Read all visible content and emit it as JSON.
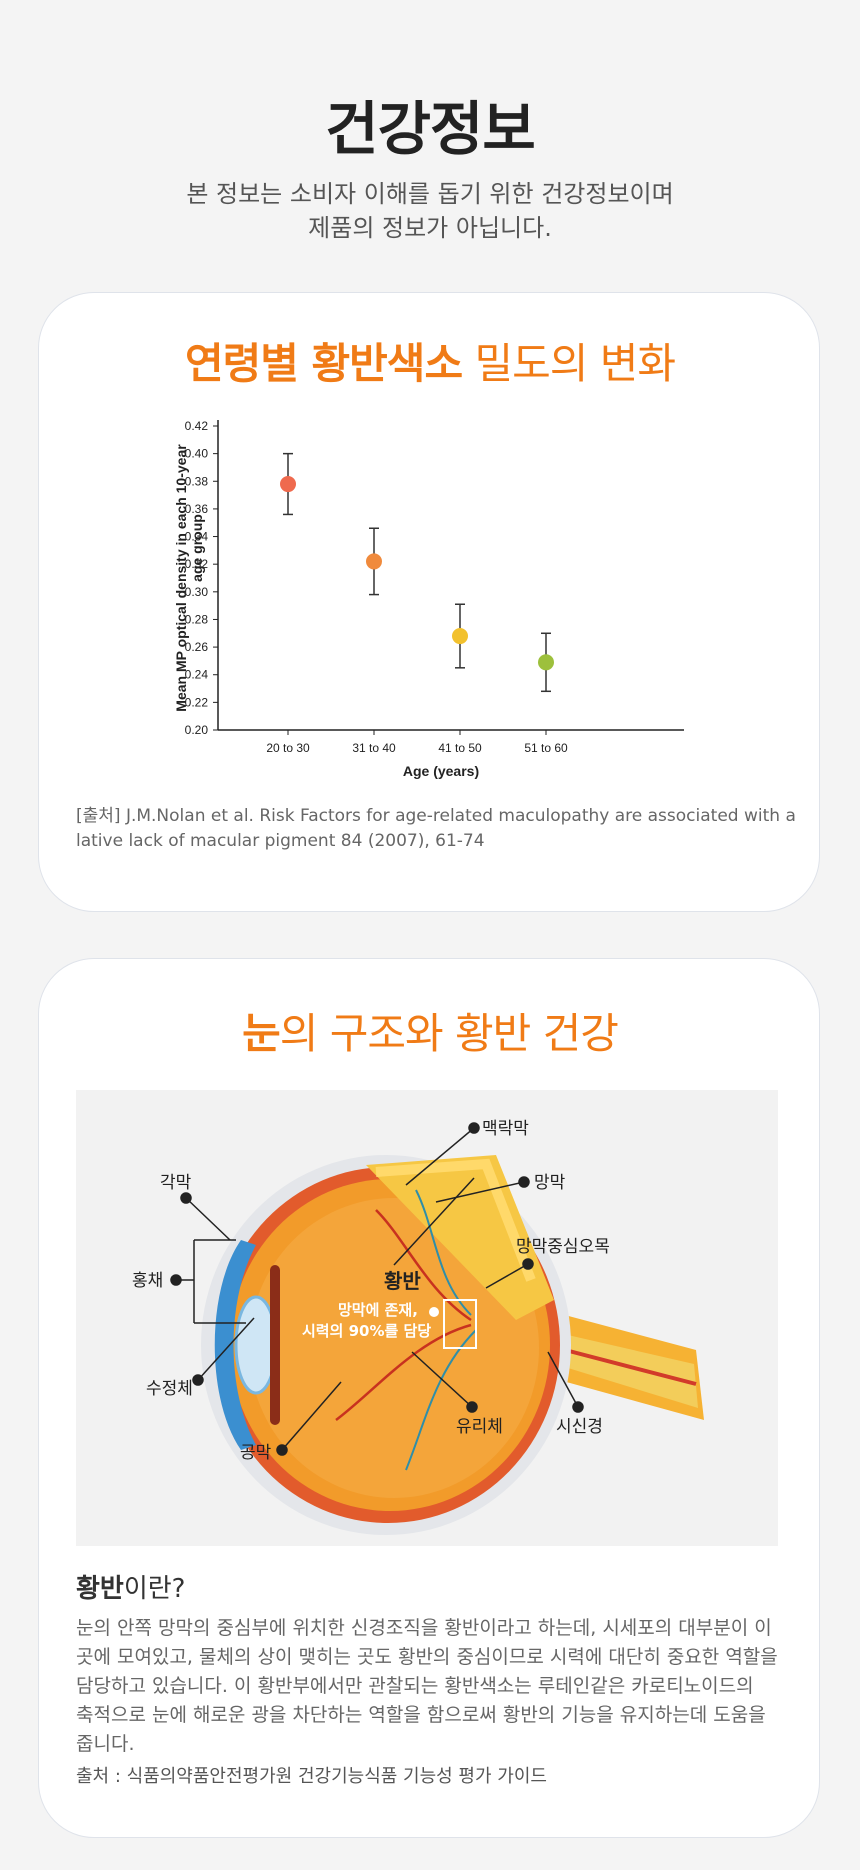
{
  "header": {
    "title": "건강정보",
    "subtitle_line1": "본 정보는 소비자 이해를 돕기 위한 건강정보이며",
    "subtitle_line2": "제품의 정보가 아닙니다."
  },
  "card1": {
    "title_highlight": "연령별 황반색소",
    "title_rest": " 밀도의 변화",
    "source": "[출처] J.M.Nolan et al. Risk Factors for age-related maculopathy are associated with a lative lack of macular pigment 84 (2007), 61-74"
  },
  "chart_data": {
    "type": "scatter",
    "xlabel": "Age (years)",
    "ylabel_line1": "Mean MP optical density in each 10-year",
    "ylabel_line2": "age group",
    "categories": [
      "20 to 30",
      "31 to 40",
      "41 to 50",
      "51 to 60"
    ],
    "values": [
      0.378,
      0.322,
      0.268,
      0.249
    ],
    "error_low": [
      0.356,
      0.298,
      0.245,
      0.228
    ],
    "error_high": [
      0.4,
      0.346,
      0.291,
      0.27
    ],
    "point_colors": [
      "#ef6a4e",
      "#f08a3c",
      "#f2c12e",
      "#9dc03c"
    ],
    "ylim": [
      0.2,
      0.42
    ],
    "yticks": [
      "0.20",
      "0.22",
      "0.24",
      "0.26",
      "0.28",
      "0.30",
      "0.32",
      "0.34",
      "0.36",
      "0.38",
      "0.40",
      "0.42"
    ],
    "grid": false
  },
  "card2": {
    "title_highlight": "눈",
    "title_rest": "의 구조와 황반 건강",
    "eye_labels": {
      "choroid": "맥락막",
      "cornea": "각막",
      "retina": "망막",
      "fovea": "망막중심오목",
      "iris": "홍채",
      "macula": "황반",
      "macula_desc_1": "망막에 존재,",
      "macula_desc_2": "시력의 90%를 담당",
      "lens": "수정체",
      "vitreous": "유리체",
      "optic_nerve": "시신경",
      "sclera": "공막"
    },
    "question_bold": "황반",
    "question_rest": "이란?",
    "body": "눈의 안쪽 망막의 중심부에 위치한 신경조직을 황반이라고 하는데, 시세포의 대부분이 이 곳에 모여있고, 물체의 상이 맺히는 곳도 황반의 중심이므로 시력에 대단히 중요한 역할을 담당하고 있습니다. 이 황반부에서만 관찰되는 황반색소는 루테인같은 카로티노이드의 축적으로 눈에 해로운 광을 차단하는 역할을 함으로써 황반의 기능을 유지하는데 도움을 줍니다.",
    "source": "출처 : 식품의약품안전평가원 건강기능식품 기능성 평가 가이드"
  },
  "colors": {
    "accent": "#f07b16",
    "background": "#f4f4f4",
    "card": "#ffffff"
  }
}
